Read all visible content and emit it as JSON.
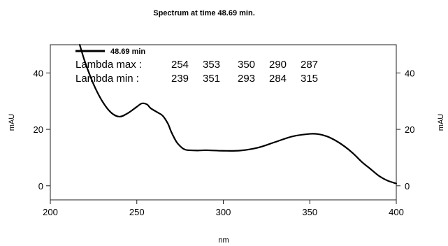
{
  "chart_data": {
    "type": "line",
    "title": "Spectrum at time 48.69 min.",
    "xlabel": "nm",
    "ylabel_left": "mAU",
    "ylabel_right": "mAU",
    "xlim": [
      200,
      400
    ],
    "ylim": [
      -5,
      50
    ],
    "x_ticks": [
      200,
      250,
      300,
      350,
      400
    ],
    "y_ticks": [
      0,
      20,
      40
    ],
    "grid": false,
    "legend_position": "top-left",
    "series": [
      {
        "name": "48.69 min",
        "color": "#000000",
        "x": [
          217,
          220,
          225,
          230,
          235,
          240,
          245,
          250,
          253,
          256,
          258,
          262,
          265,
          268,
          270,
          273,
          276,
          278,
          280,
          285,
          290,
          300,
          310,
          320,
          330,
          340,
          350,
          355,
          360,
          365,
          370,
          375,
          380,
          385,
          390,
          395,
          400
        ],
        "y": [
          50,
          44,
          36,
          30,
          26,
          24.5,
          25.8,
          28,
          29.2,
          28.8,
          27.5,
          26,
          24.8,
          22,
          19,
          15.5,
          13.5,
          12.8,
          12.6,
          12.5,
          12.6,
          12.4,
          12.5,
          13.5,
          15.5,
          17.5,
          18.4,
          18.3,
          17.5,
          16,
          14,
          11.5,
          8.5,
          6,
          3.5,
          1.8,
          0.8
        ]
      }
    ],
    "annotations": {
      "lambda_max_label": "Lambda max :",
      "lambda_max": [
        "254",
        "353",
        "350",
        "290",
        "287"
      ],
      "lambda_min_label": "Lambda min  :",
      "lambda_min": [
        "239",
        "351",
        "293",
        "284",
        "315"
      ]
    }
  }
}
